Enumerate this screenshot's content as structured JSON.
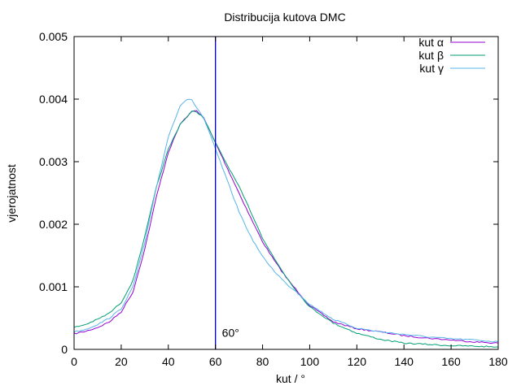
{
  "chart_data": {
    "type": "line",
    "title": "Distribucija kutova DMC",
    "xlabel": "kut / °",
    "ylabel": "vjerojatnost",
    "xlim": [
      0,
      180
    ],
    "ylim": [
      0,
      0.005
    ],
    "x_ticks": [
      "0",
      "20",
      "40",
      "60",
      "80",
      "100",
      "120",
      "140",
      "160",
      "180"
    ],
    "y_ticks": [
      "0",
      "0.001",
      "0.002",
      "0.003",
      "0.004",
      "0.005"
    ],
    "grid": false,
    "legend_position": "top-right",
    "series": [
      {
        "name": "kut α",
        "color": "#9400d3",
        "x": [
          0,
          5,
          10,
          15,
          20,
          25,
          30,
          35,
          40,
          45,
          50,
          52,
          55,
          60,
          65,
          70,
          75,
          80,
          85,
          90,
          95,
          100,
          110,
          120,
          130,
          140,
          150,
          160,
          170,
          180
        ],
        "y": [
          0.00025,
          0.00029,
          0.00035,
          0.00044,
          0.0006,
          0.00092,
          0.0016,
          0.00245,
          0.00315,
          0.0036,
          0.0038,
          0.00382,
          0.0037,
          0.0033,
          0.0029,
          0.0025,
          0.0021,
          0.00172,
          0.00142,
          0.00115,
          0.00092,
          0.0007,
          0.00044,
          0.00033,
          0.00028,
          0.00022,
          0.00018,
          0.00015,
          0.00012,
          0.0001
        ]
      },
      {
        "name": "kut β",
        "color": "#009e73",
        "x": [
          0,
          5,
          10,
          15,
          20,
          25,
          30,
          35,
          40,
          45,
          50,
          52,
          55,
          60,
          65,
          70,
          75,
          80,
          85,
          90,
          95,
          100,
          110,
          120,
          130,
          140,
          150,
          160,
          170,
          180
        ],
        "y": [
          0.00035,
          0.0004,
          0.00048,
          0.00058,
          0.00075,
          0.0011,
          0.0018,
          0.0026,
          0.0032,
          0.0036,
          0.0038,
          0.0038,
          0.0037,
          0.0033,
          0.00295,
          0.0026,
          0.0022,
          0.00178,
          0.00145,
          0.00116,
          0.0009,
          0.00068,
          0.00042,
          0.00026,
          0.00016,
          0.0001,
          8e-05,
          6e-05,
          5e-05,
          4e-05
        ]
      },
      {
        "name": "kut γ",
        "color": "#56b4e9",
        "x": [
          0,
          5,
          10,
          15,
          20,
          25,
          30,
          35,
          40,
          45,
          48,
          50,
          55,
          60,
          65,
          70,
          75,
          80,
          85,
          90,
          95,
          100,
          110,
          120,
          130,
          140,
          150,
          160,
          170,
          180
        ],
        "y": [
          0.00028,
          0.00032,
          0.0004,
          0.0005,
          0.00065,
          0.001,
          0.0017,
          0.0026,
          0.0034,
          0.0039,
          0.004,
          0.00398,
          0.0037,
          0.0032,
          0.0027,
          0.0022,
          0.0018,
          0.00148,
          0.00125,
          0.00105,
          0.0009,
          0.00072,
          0.00048,
          0.00034,
          0.00028,
          0.00024,
          0.0002,
          0.00017,
          0.00015,
          0.00012
        ]
      }
    ],
    "vline": {
      "x": 60,
      "label": "60°",
      "color": "#0000cc"
    }
  }
}
